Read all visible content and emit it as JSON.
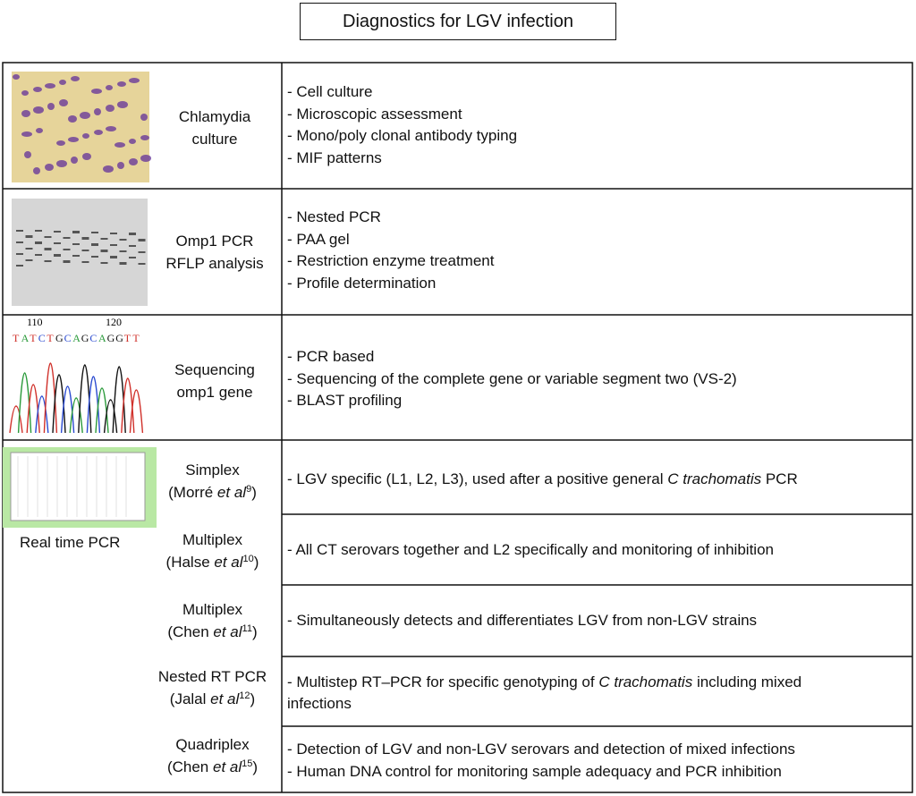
{
  "title": "Diagnostics for LGV infection",
  "rows": [
    {
      "method": [
        "Chlamydia",
        "culture"
      ],
      "items": [
        "- Cell culture",
        "- Microscopic assessment",
        "- Mono/poly clonal antibody typing",
        "- MIF patterns"
      ]
    },
    {
      "method": [
        "Omp1 PCR",
        "RFLP analysis"
      ],
      "items": [
        "- Nested PCR",
        "- PAA gel",
        "- Restriction enzyme treatment",
        "- Profile determination"
      ]
    },
    {
      "method": [
        "Sequencing",
        "omp1 gene"
      ],
      "items": [
        "- PCR based",
        "- Sequencing of the complete gene or variable segment two (VS-2)",
        "- BLAST profiling"
      ],
      "chromatogram": {
        "positions": [
          "110",
          "120"
        ],
        "bases": [
          "T",
          "A",
          "T",
          "C",
          "T",
          "G",
          "C",
          "A",
          "G",
          "C",
          "A",
          "G",
          "G",
          "T",
          "T"
        ]
      }
    }
  ],
  "real_time_pcr": {
    "label": "Real time PCR",
    "assays": [
      {
        "name": "Simplex",
        "author": "(Morré ",
        "etal": "et al",
        "ref": "9",
        "close": ")",
        "items": [
          [
            "- LGV specific (L1, L2, L3), used after a positive general ",
            "C trachomatis",
            " PCR"
          ]
        ]
      },
      {
        "name": "Multiplex",
        "author": "(Halse ",
        "etal": "et al",
        "ref": "10",
        "close": ")",
        "items": [
          [
            "- All CT serovars together and L2 specifically and monitoring of inhibition"
          ]
        ]
      },
      {
        "name": "Multiplex",
        "author": "(Chen ",
        "etal": "et al",
        "ref": "11",
        "close": ")",
        "items": [
          [
            "- Simultaneously detects and differentiates LGV from non-LGV strains"
          ]
        ]
      },
      {
        "name": "Nested RT PCR",
        "author": "(Jalal ",
        "etal": "et al",
        "ref": "12",
        "close": ")",
        "items": [
          [
            "- Multistep RT–PCR for specific genotyping of ",
            "C trachomatis",
            " including mixed"
          ],
          [
            "infections"
          ]
        ]
      },
      {
        "name": "Quadriplex",
        "author": "(Chen ",
        "etal": "et al",
        "ref": "15",
        "close": ")",
        "items": [
          [
            "- Detection of LGV and non-LGV serovars and detection of mixed infections"
          ],
          [
            "- Human DNA control for monitoring sample adequacy and PCR inhibition"
          ]
        ]
      }
    ]
  }
}
